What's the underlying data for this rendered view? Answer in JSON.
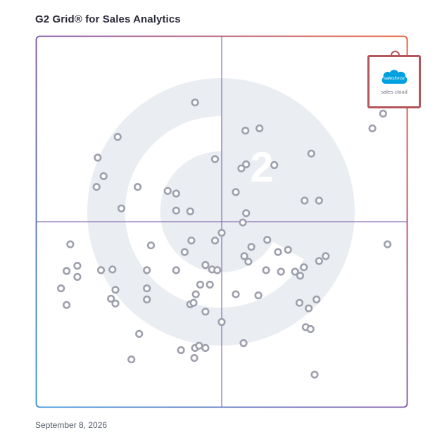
{
  "title": "G2 Grid® for Sales Analytics",
  "date": "September 8, 2026",
  "highlight": {
    "logo_word": "salesforce",
    "label": "sales cloud",
    "brand_color": "#00A1E0",
    "frame_color": "#b3565d"
  },
  "chart_data": {
    "type": "scatter",
    "title": "G2 Grid® for Sales Analytics",
    "xlabel": "",
    "ylabel": "",
    "xlim": [
      0,
      100
    ],
    "ylim": [
      0,
      100
    ],
    "grid": false,
    "quadrant_divider": {
      "x": 50,
      "y": 50
    },
    "colors": {
      "marker": "#9ea0ad",
      "watermark": "#eaedf2",
      "border_gradient": [
        "#2f6fc4",
        "#7b52a8",
        "#e7532e"
      ],
      "divider": "#8a6fb5"
    },
    "series": [
      {
        "values": [
          [
            42.8,
            82.2
          ],
          [
            21.9,
            72.9
          ],
          [
            16.5,
            67.3
          ],
          [
            18.1,
            62.3
          ],
          [
            16.2,
            59.4
          ],
          [
            27.3,
            59.4
          ],
          [
            35.4,
            58.3
          ],
          [
            37.7,
            57.6
          ],
          [
            22.9,
            53.6
          ],
          [
            37.7,
            53.0
          ],
          [
            41.5,
            52.8
          ],
          [
            48.2,
            66.9
          ],
          [
            56.4,
            74.6
          ],
          [
            60.2,
            75.2
          ],
          [
            55.3,
            64.4
          ],
          [
            56.6,
            65.5
          ],
          [
            64.2,
            65.3
          ],
          [
            74.2,
            68.4
          ],
          [
            53.8,
            58.0
          ],
          [
            72.4,
            55.7
          ],
          [
            76.3,
            55.7
          ],
          [
            90.7,
            75.2
          ],
          [
            93.6,
            79.2
          ],
          [
            9.1,
            43.9
          ],
          [
            11.0,
            38.1
          ],
          [
            6.6,
            32.0
          ],
          [
            8.1,
            27.5
          ],
          [
            17.4,
            36.9
          ],
          [
            20.5,
            37.1
          ],
          [
            21.3,
            31.6
          ],
          [
            20.1,
            29.2
          ],
          [
            21.3,
            27.9
          ],
          [
            29.8,
            36.9
          ],
          [
            30.9,
            43.6
          ],
          [
            29.8,
            32.0
          ],
          [
            29.8,
            29.0
          ],
          [
            41.8,
            44.9
          ],
          [
            40.0,
            41.8
          ],
          [
            37.7,
            36.9
          ],
          [
            45.6,
            38.3
          ],
          [
            47.4,
            37.1
          ],
          [
            48.8,
            36.9
          ],
          [
            48.2,
            44.9
          ],
          [
            50.0,
            47.0
          ],
          [
            44.2,
            33.0
          ],
          [
            46.8,
            33.0
          ],
          [
            43.0,
            30.4
          ],
          [
            41.5,
            27.7
          ],
          [
            42.4,
            28.1
          ],
          [
            45.6,
            25.7
          ],
          [
            56.1,
            40.7
          ],
          [
            57.2,
            39.2
          ],
          [
            58.0,
            43.2
          ],
          [
            55.7,
            49.8
          ],
          [
            56.6,
            52.3
          ],
          [
            62.0,
            36.9
          ],
          [
            66.0,
            36.5
          ],
          [
            62.3,
            45.1
          ],
          [
            65.2,
            41.8
          ],
          [
            67.9,
            42.4
          ],
          [
            53.8,
            30.4
          ],
          [
            59.9,
            30.1
          ],
          [
            69.8,
            36.5
          ],
          [
            71.2,
            35.4
          ],
          [
            72.2,
            37.7
          ],
          [
            76.3,
            39.4
          ],
          [
            78.1,
            40.7
          ],
          [
            71.0,
            28.1
          ],
          [
            73.5,
            26.6
          ],
          [
            75.6,
            29.0
          ],
          [
            72.7,
            21.5
          ],
          [
            74.0,
            21.0
          ],
          [
            50.0,
            22.9
          ],
          [
            55.9,
            17.2
          ],
          [
            11.0,
            35.1
          ],
          [
            27.7,
            19.7
          ],
          [
            25.6,
            12.8
          ],
          [
            39.0,
            15.3
          ],
          [
            42.8,
            15.9
          ],
          [
            43.9,
            16.5
          ],
          [
            45.6,
            15.9
          ],
          [
            42.6,
            13.2
          ],
          [
            94.8,
            43.9
          ],
          [
            75.1,
            8.7
          ],
          [
            8.1,
            36.7
          ]
        ]
      },
      {
        "name": "sales cloud",
        "values": [
          [
            96.0,
            94.7
          ]
        ]
      }
    ]
  }
}
